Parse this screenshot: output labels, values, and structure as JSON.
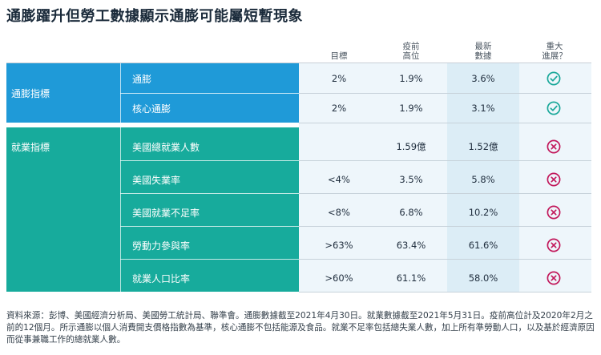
{
  "title": "通膨躍升但勞工數據顯示通膨可能屬短暫現象",
  "columns": {
    "target": [
      "目標"
    ],
    "pre_pandemic": [
      "疫前",
      "高位"
    ],
    "latest": [
      "最新",
      "數據"
    ],
    "major_progress": [
      "重大",
      "進展？"
    ]
  },
  "groups": [
    {
      "label": "通膨指標",
      "color": "#1f9ad8",
      "rows": [
        {
          "indicator": "通膨",
          "target": "2%",
          "pre_pandemic": "1.9%",
          "latest": "3.6%",
          "status": "check"
        },
        {
          "indicator": "核心通膨",
          "target": "2%",
          "pre_pandemic": "1.9%",
          "latest": "3.1%",
          "status": "check"
        }
      ]
    },
    {
      "label": "就業指標",
      "color": "#17ab9c",
      "rows": [
        {
          "indicator": "美國總就業人數",
          "target": "",
          "pre_pandemic": "1.59億",
          "latest": "1.52億",
          "status": "cross"
        },
        {
          "indicator": "美國失業率",
          "target": "<4%",
          "pre_pandemic": "3.5%",
          "latest": "5.8%",
          "status": "cross"
        },
        {
          "indicator": "美國就業不足率",
          "target": "<8%",
          "pre_pandemic": "6.8%",
          "latest": "10.2%",
          "status": "cross"
        },
        {
          "indicator": "勞動力參與率",
          "target": ">63%",
          "pre_pandemic": "63.4%",
          "latest": "61.6%",
          "status": "cross"
        },
        {
          "indicator": "就業人口比率",
          "target": ">60%",
          "pre_pandemic": "61.1%",
          "latest": "58.0%",
          "status": "cross"
        }
      ]
    }
  ],
  "status_colors": {
    "check": "#1aa89a",
    "cross": "#c2185b"
  },
  "footnote": "資料來源：彭博、美國經濟分析局、美國勞工統計局、聯準會。通膨數據截至2021年4月30日。就業數據截至2021年5月31日。疫前高位計及2020年2月之前的12個月。所示通膨以個人消費開支價格指數為基準，核心通膨不包括能源及食品。就業不足率包括總失業人數，加上所有準勞動人口，以及基於經濟原因而從事兼職工作的總就業人數。"
}
